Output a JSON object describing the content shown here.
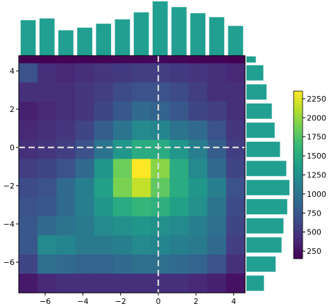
{
  "chart_data": {
    "type": "heatmap",
    "title": "",
    "xlabel": "",
    "ylabel": "",
    "xlim": [
      -7.4,
      4.6
    ],
    "ylim": [
      -7.6,
      4.8
    ],
    "x_edges": [
      -7.4,
      -6.4,
      -5.4,
      -4.4,
      -3.4,
      -2.4,
      -1.4,
      -0.4,
      0.6,
      1.6,
      2.6,
      3.6,
      4.6
    ],
    "y_edges": [
      -7.6,
      -6.6,
      -5.6,
      -4.6,
      -3.6,
      -2.6,
      -1.6,
      -0.6,
      0.4,
      1.4,
      2.4,
      3.4,
      4.4,
      4.8
    ],
    "values": [
      [
        150,
        140,
        160,
        170,
        160,
        180,
        170,
        190,
        180,
        160,
        170,
        150
      ],
      [
        700,
        450,
        400,
        450,
        500,
        520,
        550,
        550,
        520,
        480,
        450,
        400
      ],
      [
        450,
        450,
        450,
        500,
        550,
        650,
        700,
        700,
        650,
        550,
        450,
        450
      ],
      [
        350,
        400,
        450,
        500,
        600,
        750,
        900,
        850,
        750,
        600,
        550,
        450
      ],
      [
        400,
        450,
        500,
        600,
        800,
        1000,
        1200,
        1150,
        1000,
        900,
        700,
        500
      ],
      [
        450,
        500,
        550,
        700,
        1000,
        1300,
        1500,
        1500,
        1300,
        1100,
        800,
        550
      ],
      [
        550,
        600,
        700,
        900,
        1300,
        1850,
        2350,
        1950,
        1500,
        1200,
        900,
        600
      ],
      [
        650,
        700,
        900,
        1100,
        1400,
        1900,
        2150,
        1800,
        1500,
        1300,
        1100,
        700
      ],
      [
        700,
        750,
        900,
        1100,
        1300,
        1500,
        1600,
        1550,
        1400,
        1250,
        1000,
        650
      ],
      [
        750,
        900,
        1000,
        1050,
        1200,
        1250,
        1300,
        1250,
        1200,
        1100,
        950,
        600
      ],
      [
        750,
        1200,
        1150,
        1050,
        1050,
        1100,
        1200,
        1150,
        1100,
        1050,
        900,
        550
      ],
      [
        600,
        950,
        900,
        850,
        850,
        900,
        950,
        950,
        900,
        850,
        700,
        450
      ],
      [
        300,
        400,
        450,
        450,
        450,
        450,
        450,
        450,
        450,
        400,
        350,
        250
      ]
    ],
    "x_marginal": [
      8100,
      8500,
      5800,
      6400,
      7300,
      8300,
      9900,
      12400,
      11100,
      9700,
      8800,
      6800
    ],
    "y_marginal": [
      3000,
      5400,
      6400,
      8100,
      9000,
      10700,
      12700,
      13700,
      13000,
      11800,
      11200,
      9300,
      5600
    ],
    "marginal_color": "#21a092",
    "cmap": [
      "#440154",
      "#482878",
      "#3e4a89",
      "#31688e",
      "#26828e",
      "#1f9e89",
      "#35b779",
      "#6ece58",
      "#b5de2b",
      "#fde725"
    ],
    "vmin": 150,
    "vmax": 2350,
    "xticks": [
      "−6",
      "−4",
      "−2",
      "0",
      "2",
      "4"
    ],
    "yticks": [
      "4",
      "2",
      "0",
      "−2",
      "−4",
      "−6"
    ],
    "colorbar_ticks": [
      "2250",
      "2000",
      "1750",
      "1500",
      "1250",
      "1000",
      "750",
      "500",
      "250"
    ],
    "crosshair": {
      "x": 0,
      "y": 0,
      "style": "dashed",
      "color": "#dddddd"
    },
    "grid": false
  }
}
